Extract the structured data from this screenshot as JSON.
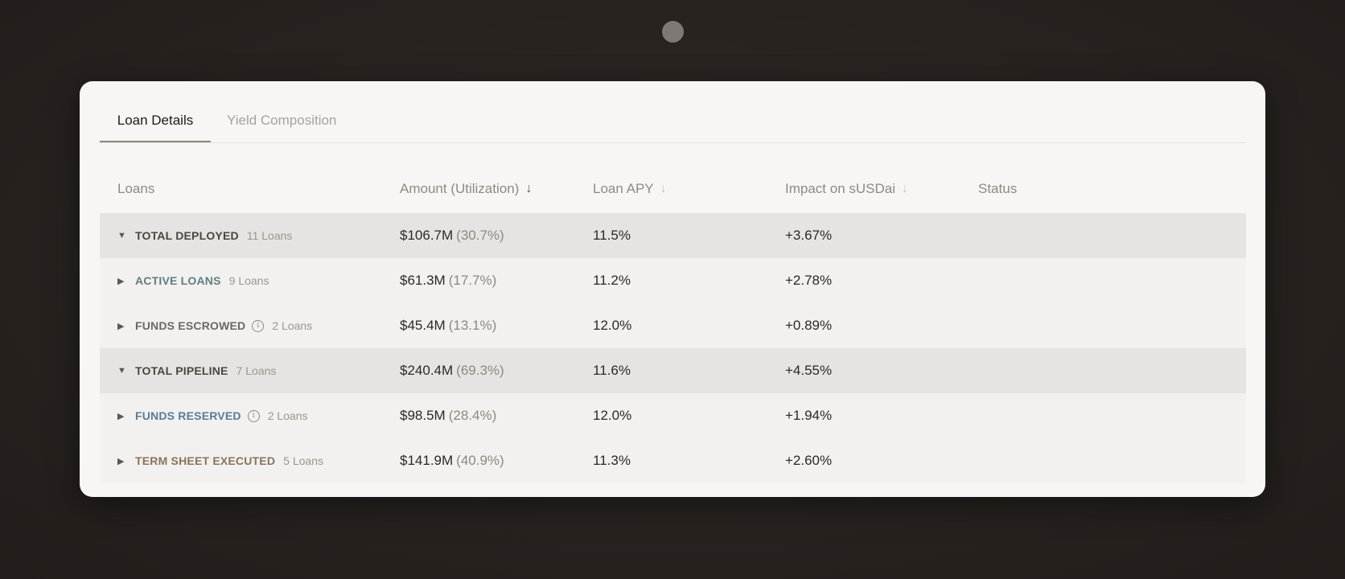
{
  "tabs": [
    {
      "label": "Loan Details",
      "active": true
    },
    {
      "label": "Yield Composition",
      "active": false
    }
  ],
  "table": {
    "columns": {
      "loans": "Loans",
      "amount": "Amount (Utilization)",
      "apy": "Loan APY",
      "impact": "Impact on sUSDai",
      "status": "Status"
    },
    "rows": [
      {
        "type": "group",
        "expanded": true,
        "label": "TOTAL DEPLOYED",
        "count": "11 Loans",
        "amount": "$106.7M",
        "utilization": "(30.7%)",
        "apy": "11.5%",
        "impact": "+3.67%",
        "label_color": "#4a4641"
      },
      {
        "type": "sub",
        "expanded": false,
        "label": "ACTIVE LOANS",
        "count": "9 Loans",
        "amount": "$61.3M",
        "utilization": "(17.7%)",
        "apy": "11.2%",
        "impact": "+2.78%",
        "label_color": "#5d7f80"
      },
      {
        "type": "sub",
        "expanded": false,
        "label": "FUNDS ESCROWED",
        "info": true,
        "count": "2 Loans",
        "amount": "$45.4M",
        "utilization": "(13.1%)",
        "apy": "12.0%",
        "impact": "+0.89%",
        "label_color": "#6b6864"
      },
      {
        "type": "group",
        "expanded": true,
        "label": "TOTAL PIPELINE",
        "count": "7 Loans",
        "amount": "$240.4M",
        "utilization": "(69.3%)",
        "apy": "11.6%",
        "impact": "+4.55%",
        "label_color": "#4a4641"
      },
      {
        "type": "sub",
        "expanded": false,
        "label": "FUNDS RESERVED",
        "info": true,
        "count": "2 Loans",
        "amount": "$98.5M",
        "utilization": "(28.4%)",
        "apy": "12.0%",
        "impact": "+1.94%",
        "label_color": "#5b7a98"
      },
      {
        "type": "sub",
        "expanded": false,
        "label": "TERM SHEET EXECUTED",
        "count": "5 Loans",
        "amount": "$141.9M",
        "utilization": "(40.9%)",
        "apy": "11.3%",
        "impact": "+2.60%",
        "label_color": "#8a7358"
      }
    ]
  },
  "icons": {
    "sort_active": "arrow-down-icon",
    "sort_inactive": "arrow-down-icon",
    "caret_expanded": "caret-down-icon",
    "caret_collapsed": "caret-right-icon",
    "info": "info-icon"
  }
}
